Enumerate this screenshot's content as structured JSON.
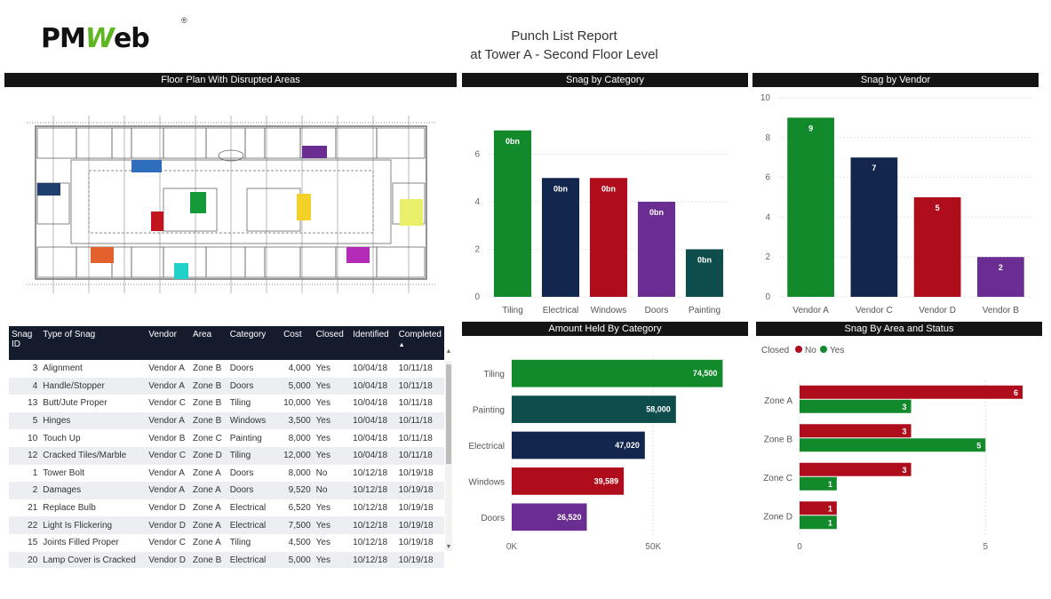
{
  "logo": {
    "brand_a": "PM",
    "brand_b": "W",
    "brand_c": "eb",
    "reg": "®"
  },
  "report": {
    "title_line1": "Punch List Report",
    "title_line2": "at Tower A - Second Floor Level"
  },
  "panels": {
    "floor_plan": "Floor Plan With Disrupted Areas",
    "snag_category": "Snag by Category",
    "snag_vendor": "Snag by Vendor",
    "amount_category": "Amount Held By Category",
    "area_status": "Snag By Area and Status"
  },
  "table": {
    "headers": [
      "Snag ID",
      "Type of Snag",
      "Vendor",
      "Area",
      "Category",
      "Cost",
      "Closed",
      "Identified",
      "Completed"
    ],
    "sort_indicator": "▲",
    "rows": [
      [
        "3",
        "Alignment",
        "Vendor A",
        "Zone B",
        "Doors",
        "4,000",
        "Yes",
        "10/04/18",
        "10/11/18"
      ],
      [
        "4",
        "Handle/Stopper",
        "Vendor A",
        "Zone B",
        "Doors",
        "5,000",
        "Yes",
        "10/04/18",
        "10/11/18"
      ],
      [
        "13",
        "Butt/Jute Proper",
        "Vendor C",
        "Zone B",
        "Tiling",
        "10,000",
        "Yes",
        "10/04/18",
        "10/11/18"
      ],
      [
        "5",
        "Hinges",
        "Vendor A",
        "Zone B",
        "Windows",
        "3,500",
        "Yes",
        "10/04/18",
        "10/11/18"
      ],
      [
        "10",
        "Touch Up",
        "Vendor B",
        "Zone C",
        "Painting",
        "8,000",
        "Yes",
        "10/04/18",
        "10/11/18"
      ],
      [
        "12",
        "Cracked Tiles/Marble",
        "Vendor C",
        "Zone D",
        "Tiling",
        "12,000",
        "Yes",
        "10/04/18",
        "10/11/18"
      ],
      [
        "1",
        "Tower Bolt",
        "Vendor A",
        "Zone A",
        "Doors",
        "8,000",
        "No",
        "10/12/18",
        "10/19/18"
      ],
      [
        "2",
        "Damages",
        "Vendor A",
        "Zone A",
        "Doors",
        "9,520",
        "No",
        "10/12/18",
        "10/19/18"
      ],
      [
        "21",
        "Replace Bulb",
        "Vendor D",
        "Zone A",
        "Electrical",
        "6,520",
        "Yes",
        "10/12/18",
        "10/19/18"
      ],
      [
        "22",
        "Light Is Flickering",
        "Vendor D",
        "Zone A",
        "Electrical",
        "7,500",
        "Yes",
        "10/12/18",
        "10/19/18"
      ],
      [
        "15",
        "Joints Filled Proper",
        "Vendor C",
        "Zone A",
        "Tiling",
        "4,500",
        "Yes",
        "10/12/18",
        "10/19/18"
      ],
      [
        "20",
        "Lamp Cover is Cracked",
        "Vendor D",
        "Zone B",
        "Electrical",
        "5,000",
        "Yes",
        "10/12/18",
        "10/19/18"
      ]
    ]
  },
  "colors": {
    "green": "#128a2c",
    "navy": "#13264d",
    "red": "#b00d1c",
    "purple": "#6a2d91",
    "teal": "#0f4d4d",
    "header_dark": "#141414"
  },
  "chart_data": [
    {
      "type": "bar",
      "title": "Snag by Category",
      "categories": [
        "Tiling",
        "Electrical",
        "Windows",
        "Doors",
        "Painting"
      ],
      "values": [
        7,
        5,
        5,
        4,
        2
      ],
      "data_labels": [
        "0bn",
        "0bn",
        "0bn",
        "0bn",
        "0bn"
      ],
      "colors": [
        "#128a2c",
        "#13264d",
        "#b00d1c",
        "#6a2d91",
        "#0f4d4d"
      ],
      "ylim": [
        0,
        8
      ],
      "yticks": [
        0,
        2,
        4,
        6
      ],
      "grid": true
    },
    {
      "type": "bar",
      "title": "Snag by Vendor",
      "categories": [
        "Vendor A",
        "Vendor C",
        "Vendor D",
        "Vendor B"
      ],
      "values": [
        9,
        7,
        5,
        2
      ],
      "colors": [
        "#128a2c",
        "#13264d",
        "#b00d1c",
        "#6a2d91"
      ],
      "ylim": [
        0,
        10
      ],
      "yticks": [
        0,
        2,
        4,
        6,
        8,
        10
      ],
      "grid": true
    },
    {
      "type": "bar",
      "orientation": "horizontal",
      "title": "Amount Held By Category",
      "categories": [
        "Tiling",
        "Painting",
        "Electrical",
        "Windows",
        "Doors"
      ],
      "values": [
        74500,
        58000,
        47020,
        39589,
        26520
      ],
      "data_labels": [
        "74,500",
        "58,000",
        "47,020",
        "39,589",
        "26,520"
      ],
      "colors": [
        "#128a2c",
        "#0f4d4d",
        "#13264d",
        "#b00d1c",
        "#6a2d91"
      ],
      "xlim": [
        0,
        75000
      ],
      "xticks": [
        0,
        50000
      ],
      "xtick_labels": [
        "0K",
        "50K"
      ],
      "grid": true
    },
    {
      "type": "bar",
      "orientation": "horizontal",
      "title": "Snag By Area and Status",
      "legend_title": "Closed",
      "legend_position": "top-left",
      "categories": [
        "Zone A",
        "Zone B",
        "Zone C",
        "Zone D"
      ],
      "series": [
        {
          "name": "No",
          "color": "#b00d1c",
          "values": [
            6,
            3,
            3,
            1
          ]
        },
        {
          "name": "Yes",
          "color": "#128a2c",
          "values": [
            3,
            5,
            1,
            1
          ]
        }
      ],
      "xlim": [
        0,
        6.5
      ],
      "xticks": [
        0,
        5
      ],
      "grid": true
    }
  ]
}
